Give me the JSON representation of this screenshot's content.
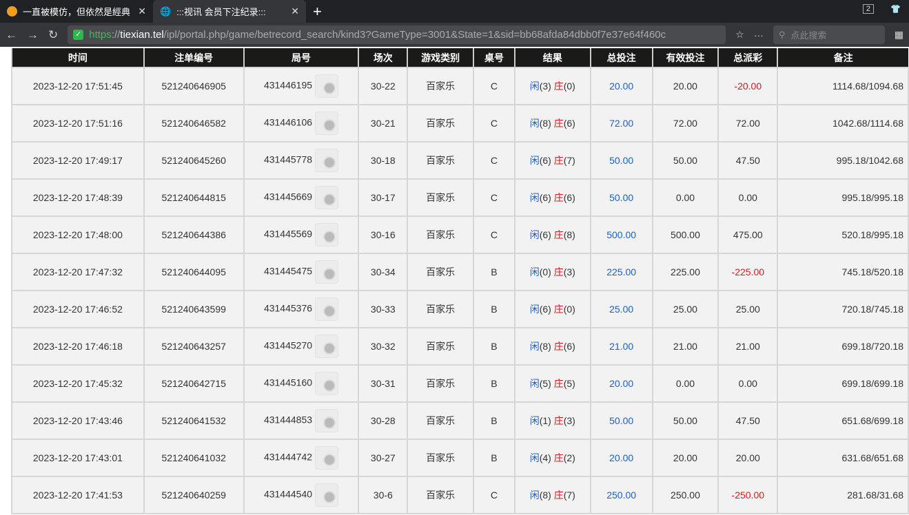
{
  "browser": {
    "tabs": [
      {
        "title": "一直被模仿，但依然是經典",
        "icon": "brand-icon"
      },
      {
        "title": ":::视讯 会员下注纪录:::",
        "icon": "globe-icon"
      }
    ],
    "tab_count": "2",
    "url": {
      "scheme": "https",
      "host": "tiexian.tel",
      "path": "/ipl/portal.php/game/betrecord_search/kind3?GameType=3001&State=1&sid=bb68afda84dbb0f7e37e64f460c"
    },
    "search_placeholder": "点此搜索"
  },
  "table": {
    "headers": [
      "时间",
      "注单编号",
      "局号",
      "场次",
      "游戏类别",
      "桌号",
      "结果",
      "总投注",
      "有效投注",
      "总派彩",
      "备注"
    ],
    "player_label": "闲",
    "banker_label": "庄",
    "rows": [
      {
        "time": "2023-12-20 17:51:45",
        "bet_id": "521240646905",
        "round": "431446195",
        "session": "30-22",
        "game": "百家乐",
        "table": "C",
        "player": "(3)",
        "banker": "(0)",
        "total": "20.00",
        "valid": "20.00",
        "payout": "-20.00",
        "remark": "1114.68/1094.68"
      },
      {
        "time": "2023-12-20 17:51:16",
        "bet_id": "521240646582",
        "round": "431446106",
        "session": "30-21",
        "game": "百家乐",
        "table": "C",
        "player": "(8)",
        "banker": "(6)",
        "total": "72.00",
        "valid": "72.00",
        "payout": "72.00",
        "remark": "1042.68/1114.68"
      },
      {
        "time": "2023-12-20 17:49:17",
        "bet_id": "521240645260",
        "round": "431445778",
        "session": "30-18",
        "game": "百家乐",
        "table": "C",
        "player": "(6)",
        "banker": "(7)",
        "total": "50.00",
        "valid": "50.00",
        "payout": "47.50",
        "remark": "995.18/1042.68"
      },
      {
        "time": "2023-12-20 17:48:39",
        "bet_id": "521240644815",
        "round": "431445669",
        "session": "30-17",
        "game": "百家乐",
        "table": "C",
        "player": "(6)",
        "banker": "(6)",
        "total": "50.00",
        "valid": "0.00",
        "payout": "0.00",
        "remark": "995.18/995.18"
      },
      {
        "time": "2023-12-20 17:48:00",
        "bet_id": "521240644386",
        "round": "431445569",
        "session": "30-16",
        "game": "百家乐",
        "table": "C",
        "player": "(6)",
        "banker": "(8)",
        "total": "500.00",
        "valid": "500.00",
        "payout": "475.00",
        "remark": "520.18/995.18"
      },
      {
        "time": "2023-12-20 17:47:32",
        "bet_id": "521240644095",
        "round": "431445475",
        "session": "30-34",
        "game": "百家乐",
        "table": "B",
        "player": "(0)",
        "banker": "(3)",
        "total": "225.00",
        "valid": "225.00",
        "payout": "-225.00",
        "remark": "745.18/520.18"
      },
      {
        "time": "2023-12-20 17:46:52",
        "bet_id": "521240643599",
        "round": "431445376",
        "session": "30-33",
        "game": "百家乐",
        "table": "B",
        "player": "(6)",
        "banker": "(0)",
        "total": "25.00",
        "valid": "25.00",
        "payout": "25.00",
        "remark": "720.18/745.18"
      },
      {
        "time": "2023-12-20 17:46:18",
        "bet_id": "521240643257",
        "round": "431445270",
        "session": "30-32",
        "game": "百家乐",
        "table": "B",
        "player": "(8)",
        "banker": "(6)",
        "total": "21.00",
        "valid": "21.00",
        "payout": "21.00",
        "remark": "699.18/720.18"
      },
      {
        "time": "2023-12-20 17:45:32",
        "bet_id": "521240642715",
        "round": "431445160",
        "session": "30-31",
        "game": "百家乐",
        "table": "B",
        "player": "(5)",
        "banker": "(5)",
        "total": "20.00",
        "valid": "0.00",
        "payout": "0.00",
        "remark": "699.18/699.18"
      },
      {
        "time": "2023-12-20 17:43:46",
        "bet_id": "521240641532",
        "round": "431444853",
        "session": "30-28",
        "game": "百家乐",
        "table": "B",
        "player": "(1)",
        "banker": "(3)",
        "total": "50.00",
        "valid": "50.00",
        "payout": "47.50",
        "remark": "651.68/699.18"
      },
      {
        "time": "2023-12-20 17:43:01",
        "bet_id": "521240641032",
        "round": "431444742",
        "session": "30-27",
        "game": "百家乐",
        "table": "B",
        "player": "(4)",
        "banker": "(2)",
        "total": "20.00",
        "valid": "20.00",
        "payout": "20.00",
        "remark": "631.68/651.68"
      },
      {
        "time": "2023-12-20 17:41:53",
        "bet_id": "521240640259",
        "round": "431444540",
        "session": "30-6",
        "game": "百家乐",
        "table": "C",
        "player": "(8)",
        "banker": "(7)",
        "total": "250.00",
        "valid": "250.00",
        "payout": "-250.00",
        "remark": "281.68/31.68"
      }
    ]
  },
  "colors": {
    "player": "#1a5fcf",
    "banker": "#e0151b",
    "negative": "#e0151b",
    "header_bg": "#1a1a1a"
  }
}
